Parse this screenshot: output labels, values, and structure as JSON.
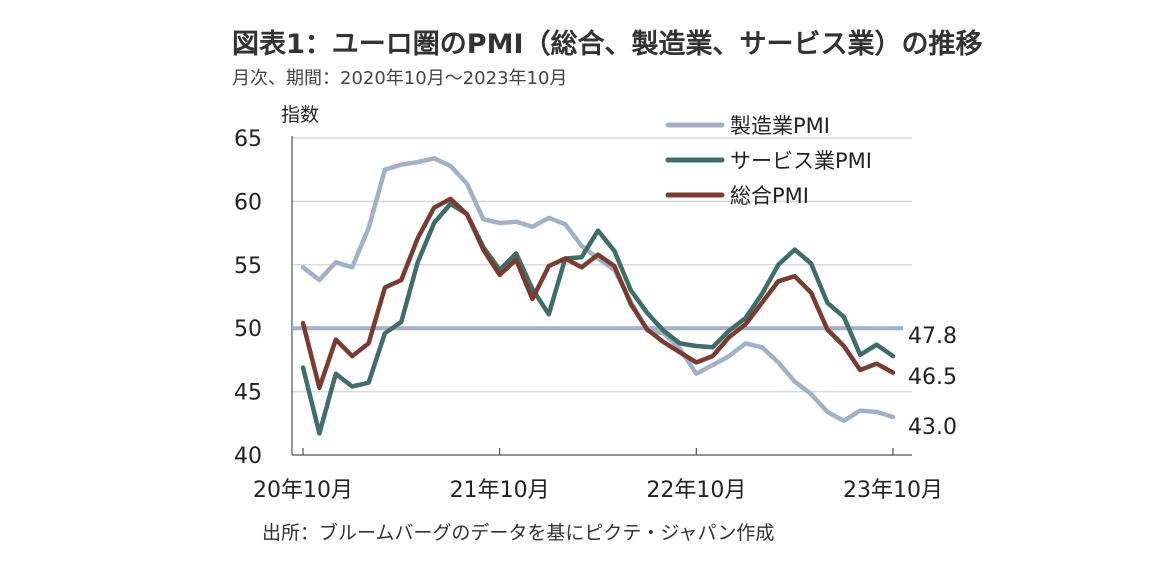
{
  "header": {
    "title": "図表1：ユーロ圏のPMI（総合、製造業、サービス業）の推移",
    "subtitle": "月次、期間：2020年10月～2023年10月"
  },
  "footer": {
    "source": "出所：ブルームバーグのデータを基にピクテ・ジャパン作成"
  },
  "chart_data": {
    "type": "line",
    "ylabel": "指数",
    "ylim": [
      40,
      65
    ],
    "yticks": [
      40,
      45,
      50,
      55,
      60,
      65
    ],
    "x_tick_labels": [
      "20年10月",
      "21年10月",
      "22年10月",
      "23年10月"
    ],
    "x_tick_index": [
      0,
      12,
      24,
      36
    ],
    "grid": true,
    "legend_position": "top-right",
    "reference_line": 50,
    "colors": {
      "manufacturing": "#a3b1c7",
      "services": "#3f6e68",
      "composite": "#7a3b31",
      "reference": "#a3b1c7",
      "grid": "#d9d9d9"
    },
    "series": [
      {
        "name": "製造業PMI",
        "key": "manufacturing",
        "values": [
          54.8,
          53.8,
          55.2,
          54.8,
          57.9,
          62.5,
          62.9,
          63.1,
          63.4,
          62.8,
          61.4,
          58.6,
          58.3,
          58.4,
          58.0,
          58.7,
          58.2,
          56.5,
          55.5,
          54.6,
          52.1,
          49.8,
          49.6,
          48.4,
          46.4,
          47.1,
          47.8,
          48.8,
          48.5,
          47.3,
          45.8,
          44.8,
          43.4,
          42.7,
          43.5,
          43.4,
          43.0
        ],
        "end_label": "43.0"
      },
      {
        "name": "サービス業PMI",
        "key": "services",
        "values": [
          46.9,
          41.7,
          46.4,
          45.4,
          45.7,
          49.6,
          50.5,
          55.2,
          58.3,
          59.8,
          59.0,
          56.4,
          54.6,
          55.9,
          53.1,
          51.1,
          55.5,
          55.6,
          57.7,
          56.1,
          53.0,
          51.2,
          49.8,
          48.8,
          48.6,
          48.5,
          49.8,
          50.8,
          52.7,
          55.0,
          56.2,
          55.1,
          52.0,
          50.9,
          47.9,
          48.7,
          47.8
        ],
        "end_label": "47.8"
      },
      {
        "name": "総合PMI",
        "key": "composite",
        "values": [
          50.4,
          45.3,
          49.1,
          47.8,
          48.8,
          53.2,
          53.8,
          57.1,
          59.5,
          60.2,
          59.0,
          56.2,
          54.2,
          55.4,
          52.3,
          54.9,
          55.5,
          54.8,
          55.8,
          54.9,
          51.9,
          49.9,
          48.9,
          48.1,
          47.3,
          47.8,
          49.3,
          50.3,
          52.0,
          53.7,
          54.1,
          52.8,
          49.9,
          48.6,
          46.7,
          47.2,
          46.5
        ],
        "end_label": "46.5"
      }
    ]
  }
}
